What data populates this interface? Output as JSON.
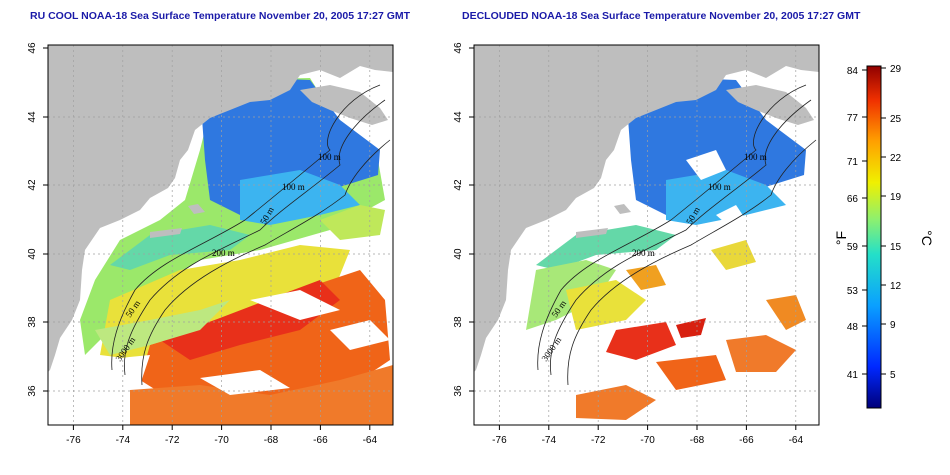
{
  "left_panel": {
    "title": "RU COOL NOAA-18 Sea Surface Temperature November 20, 2005 17:27 GMT",
    "x_ticks": [
      "-76",
      "-74",
      "-72",
      "-70",
      "-68",
      "-66",
      "-64"
    ],
    "y_ticks": [
      "46",
      "44",
      "42",
      "40",
      "38",
      "36"
    ],
    "contour_labels": [
      "100 m",
      "100 m",
      "50 m",
      "200 m",
      "50 m",
      "3000 m"
    ]
  },
  "right_panel": {
    "title": "DECLOUDED NOAA-18 Sea Surface Temperature November 20, 2005 17:27 GMT",
    "x_ticks": [
      "-76",
      "-74",
      "-72",
      "-70",
      "-68",
      "-66",
      "-64"
    ],
    "y_ticks": [
      "46",
      "44",
      "42",
      "40",
      "38",
      "36"
    ],
    "contour_labels": [
      "100 m",
      "100 m",
      "50 m",
      "200 m",
      "50 m",
      "3000 m"
    ]
  },
  "colorbar": {
    "fahrenheit_labels": [
      "84",
      "77",
      "71",
      "66",
      "59",
      "53",
      "48",
      "41"
    ],
    "celsius_labels": [
      "29",
      "25",
      "22",
      "19",
      "15",
      "12",
      "9",
      "5"
    ],
    "fahrenheit_unit": "°F",
    "celsius_unit": "°C"
  },
  "colors": {
    "land": "#bebebe",
    "title": "#1a1aa8",
    "no_data": "#ffffff"
  }
}
